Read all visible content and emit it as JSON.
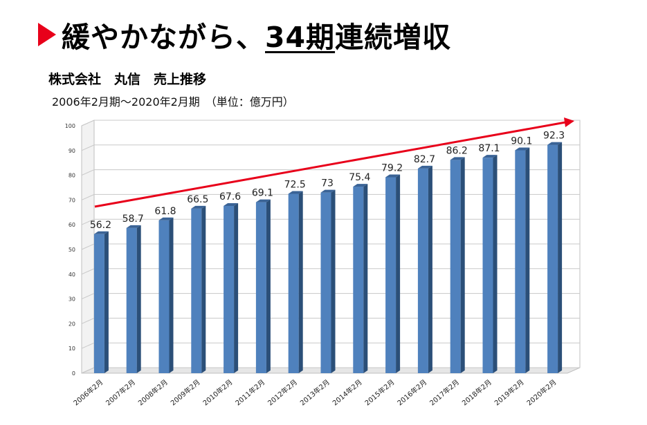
{
  "header": {
    "title_main": "緩やかながら、",
    "title_emphasis": "34期",
    "title_tail": "連続増収"
  },
  "subheader": {
    "company_title": "株式会社　丸信　売上推移",
    "period_unit": "2006年2月期～2020年2月期　（単位：億万円）"
  },
  "colors": {
    "accent_red": "#e8001a",
    "bar_front": "#4f81bd",
    "bar_side": "#2b4f78",
    "bar_top": "#3a6396",
    "trend_arrow": "#e8001a"
  },
  "chart_data": {
    "type": "bar",
    "categories": [
      "2006年2月",
      "2007年2月",
      "2008年2月",
      "2009年2月",
      "2010年2月",
      "2011年2月",
      "2012年2月",
      "2013年2月",
      "2014年2月",
      "2015年2月",
      "2016年2月",
      "2017年2月",
      "2018年2月",
      "2019年2月",
      "2020年2月"
    ],
    "values": [
      56.2,
      58.7,
      61.8,
      66.5,
      67.6,
      69.1,
      72.5,
      73,
      75.4,
      79.2,
      82.7,
      86.2,
      87.1,
      90.1,
      92.3
    ],
    "value_labels": [
      "56.2",
      "58.7",
      "61.8",
      "66.5",
      "67.6",
      "69.1",
      "72.5",
      "73",
      "75.4",
      "79.2",
      "82.7",
      "86.2",
      "87.1",
      "90.1",
      "92.3"
    ],
    "ylim": [
      0,
      100
    ],
    "yticks": [
      0,
      10,
      20,
      30,
      40,
      50,
      60,
      70,
      80,
      90,
      100
    ],
    "ytick_labels": [
      "0",
      "10",
      "20",
      "30",
      "40",
      "50",
      "60",
      "70",
      "80",
      "90",
      "100"
    ],
    "grid": true,
    "style": "3d",
    "trend_arrow": true
  }
}
